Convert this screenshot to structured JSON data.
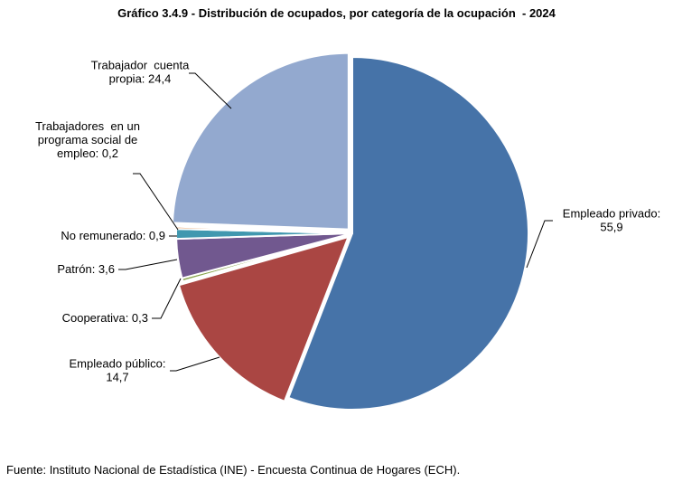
{
  "chart_data": {
    "type": "pie",
    "title": "Gráfico 3.4.9 - Distribución de ocupados, por categoría de la ocupación  - 2024",
    "slices": [
      {
        "label": "Empleado privado",
        "value": 55.9,
        "display": "55,9",
        "color": "#4673A8"
      },
      {
        "label": "Empleado público",
        "value": 14.7,
        "display": "14,7",
        "color": "#AA4643"
      },
      {
        "label": "Cooperativa",
        "value": 0.3,
        "display": "0,3",
        "color": "#89A54E"
      },
      {
        "label": "Patrón",
        "value": 3.6,
        "display": "3,6",
        "color": "#71588F"
      },
      {
        "label": "No remunerado",
        "value": 0.9,
        "display": "0,9",
        "color": "#4198AF"
      },
      {
        "label": "Trabajadores en un programa social de empleo",
        "value": 0.2,
        "display": "0,2",
        "color": "#DB843D"
      },
      {
        "label": "Trabajador cuenta propia",
        "value": 24.4,
        "display": "24,4",
        "color": "#93A9CF"
      }
    ],
    "labels": [
      {
        "lines": [
          "Empleado privado:",
          "55,9"
        ]
      },
      {
        "lines": [
          "Empleado público:",
          "14,7"
        ]
      },
      {
        "lines": [
          "Cooperativa: 0,3"
        ]
      },
      {
        "lines": [
          "Patrón: 3,6"
        ]
      },
      {
        "lines": [
          "No remunerado: 0,9"
        ]
      },
      {
        "lines": [
          "Trabajadores  en un",
          "programa social de",
          "empleo: 0,2"
        ]
      },
      {
        "lines": [
          "Trabajador  cuenta",
          "propia: 24,4"
        ]
      }
    ]
  },
  "source": "Fuente: Instituto Nacional de Estadística (INE) - Encuesta Continua de Hogares (ECH)."
}
